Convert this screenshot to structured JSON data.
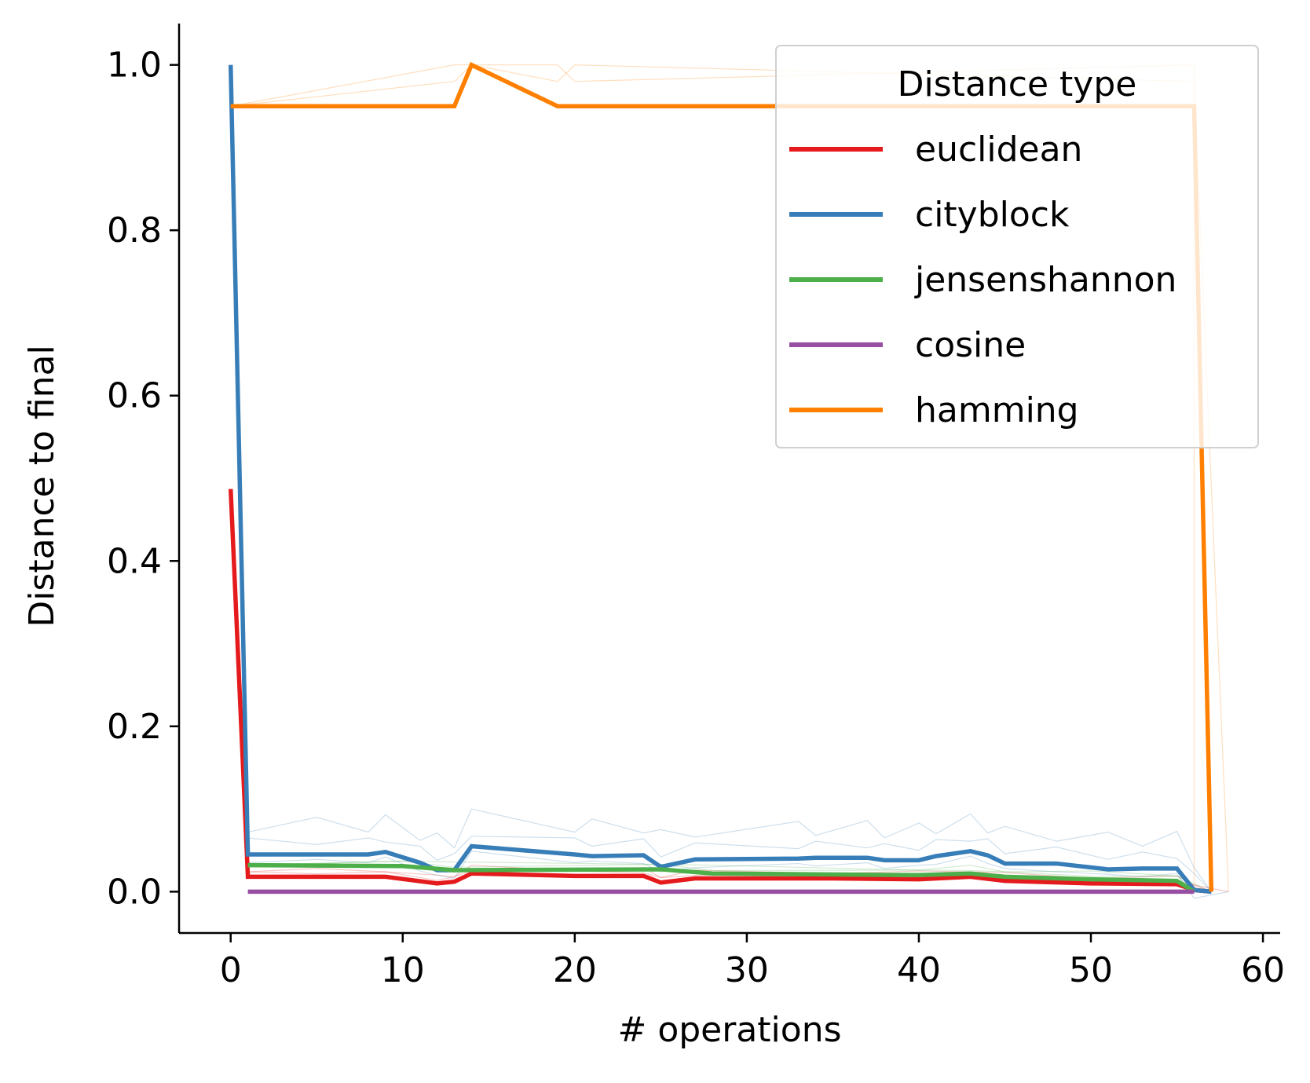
{
  "chart_data": {
    "type": "line",
    "title": "",
    "xlabel": "# operations",
    "ylabel": "Distance to final",
    "xlim": [
      -3,
      61
    ],
    "ylim": [
      -0.05,
      1.05
    ],
    "xticks": [
      0,
      10,
      20,
      30,
      40,
      50,
      60
    ],
    "xtick_labels": [
      "0",
      "10",
      "20",
      "30",
      "40",
      "50",
      "60"
    ],
    "yticks": [
      0.0,
      0.2,
      0.4,
      0.6,
      0.8,
      1.0
    ],
    "ytick_labels": [
      "0.0",
      "0.2",
      "0.4",
      "0.6",
      "0.8",
      "1.0"
    ],
    "grid": false,
    "legend": {
      "title": "Distance type",
      "placement": "top-right"
    },
    "series": [
      {
        "name": "euclidean",
        "color": "#e41a1c",
        "x": [
          0,
          1,
          5,
          9,
          12,
          13,
          14,
          20,
          24,
          25,
          27,
          35,
          40,
          43,
          45,
          50,
          55,
          56,
          57
        ],
        "y": [
          0.487,
          0.018,
          0.018,
          0.018,
          0.01,
          0.012,
          0.022,
          0.019,
          0.019,
          0.011,
          0.016,
          0.016,
          0.015,
          0.018,
          0.013,
          0.01,
          0.009,
          0.002,
          0.0
        ]
      },
      {
        "name": "cityblock",
        "color": "#377eb8",
        "x": [
          0,
          1,
          5,
          8,
          9,
          11,
          12,
          13,
          14,
          20,
          21,
          24,
          25,
          27,
          33,
          34,
          37,
          38,
          40,
          41,
          43,
          44,
          45,
          48,
          51,
          53,
          55,
          56,
          57
        ],
        "y": [
          1.0,
          0.045,
          0.045,
          0.045,
          0.048,
          0.035,
          0.026,
          0.026,
          0.055,
          0.045,
          0.043,
          0.044,
          0.03,
          0.039,
          0.04,
          0.041,
          0.041,
          0.038,
          0.038,
          0.043,
          0.049,
          0.044,
          0.034,
          0.034,
          0.027,
          0.028,
          0.028,
          0.002,
          0.0
        ]
      },
      {
        "name": "jensenshannon",
        "color": "#4daf4a",
        "x": [
          1,
          10,
          13,
          25,
          28,
          40,
          43,
          45,
          50,
          55,
          56
        ],
        "y": [
          0.032,
          0.031,
          0.026,
          0.027,
          0.022,
          0.02,
          0.022,
          0.018,
          0.015,
          0.013,
          0.0
        ]
      },
      {
        "name": "cosine",
        "color": "#984ea3",
        "x": [
          1,
          56
        ],
        "y": [
          0.0,
          0.0
        ]
      },
      {
        "name": "hamming",
        "color": "#ff7f00",
        "x": [
          0,
          13,
          14,
          19,
          20,
          56,
          57
        ],
        "y": [
          0.95,
          0.95,
          1.0,
          0.95,
          0.95,
          0.95,
          0.0
        ]
      }
    ]
  }
}
